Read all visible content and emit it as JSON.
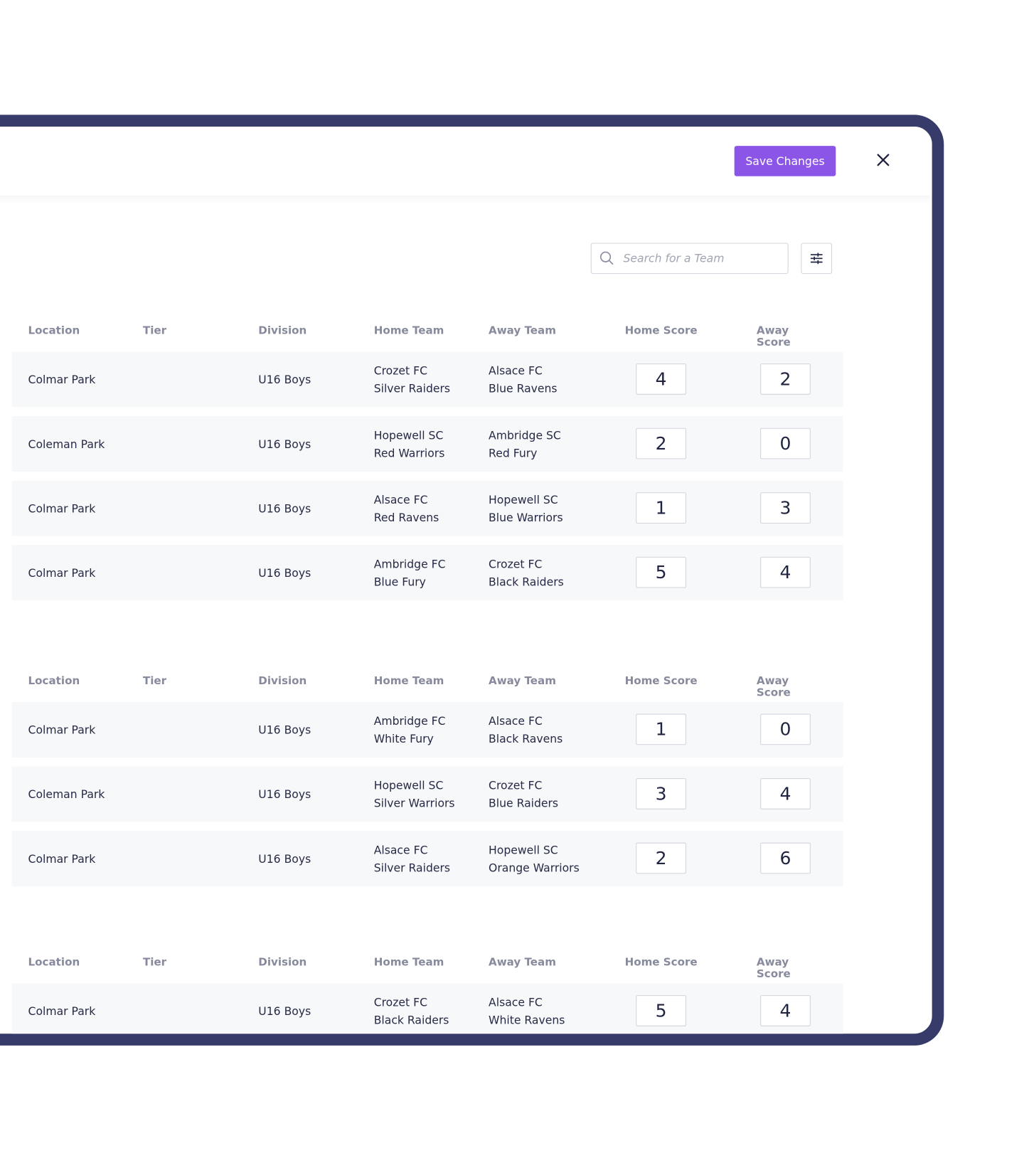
{
  "header": {
    "save_button": "Save Changes"
  },
  "search": {
    "placeholder": "Search for a Team"
  },
  "tables": [
    {
      "columns": [
        "Location",
        "Tier",
        "Division",
        "Home Team",
        "Away Team",
        "Home Score",
        "Away Score"
      ],
      "rows": [
        {
          "location": "Colmar Park",
          "division": "U16 Boys",
          "home_team": [
            "Crozet FC",
            "Silver Raiders"
          ],
          "away_team": [
            "Alsace FC",
            "Blue Ravens"
          ],
          "home_score": 4,
          "away_score": 2
        },
        {
          "location": "Coleman Park",
          "division": "U16 Boys",
          "home_team": [
            "Hopewell SC",
            "Red Warriors"
          ],
          "away_team": [
            "Ambridge SC",
            "Red Fury"
          ],
          "home_score": 2,
          "away_score": 0
        },
        {
          "location": "Colmar Park",
          "division": "U16 Boys",
          "home_team": [
            "Alsace FC",
            "Red Ravens"
          ],
          "away_team": [
            "Hopewell SC",
            "Blue Warriors"
          ],
          "home_score": 1,
          "away_score": 3
        },
        {
          "location": "Colmar Park",
          "division": "U16 Boys",
          "home_team": [
            "Ambridge FC",
            "Blue Fury"
          ],
          "away_team": [
            "Crozet FC",
            "Black Raiders"
          ],
          "home_score": 5,
          "away_score": 4
        }
      ]
    },
    {
      "columns": [
        "Location",
        "Tier",
        "Division",
        "Home Team",
        "Away Team",
        "Home Score",
        "Away Score"
      ],
      "rows": [
        {
          "location": "Colmar Park",
          "division": "U16 Boys",
          "home_team": [
            "Ambridge FC",
            "White Fury"
          ],
          "away_team": [
            "Alsace FC",
            "Black Ravens"
          ],
          "home_score": 1,
          "away_score": 0
        },
        {
          "location": "Coleman Park",
          "division": "U16 Boys",
          "home_team": [
            "Hopewell SC",
            "Silver Warriors"
          ],
          "away_team": [
            "Crozet FC",
            "Blue Raiders"
          ],
          "home_score": 3,
          "away_score": 4
        },
        {
          "location": "Colmar Park",
          "division": "U16 Boys",
          "home_team": [
            "Alsace FC",
            "Silver Raiders"
          ],
          "away_team": [
            "Hopewell SC",
            "Orange Warriors"
          ],
          "home_score": 2,
          "away_score": 6
        }
      ]
    },
    {
      "columns": [
        "Location",
        "Tier",
        "Division",
        "Home Team",
        "Away Team",
        "Home Score",
        "Away Score"
      ],
      "rows": [
        {
          "location": "Colmar Park",
          "division": "U16 Boys",
          "home_team": [
            "Crozet FC",
            "Black Raiders"
          ],
          "away_team": [
            "Alsace FC",
            "White Ravens"
          ],
          "home_score": 5,
          "away_score": 4
        }
      ]
    }
  ]
}
